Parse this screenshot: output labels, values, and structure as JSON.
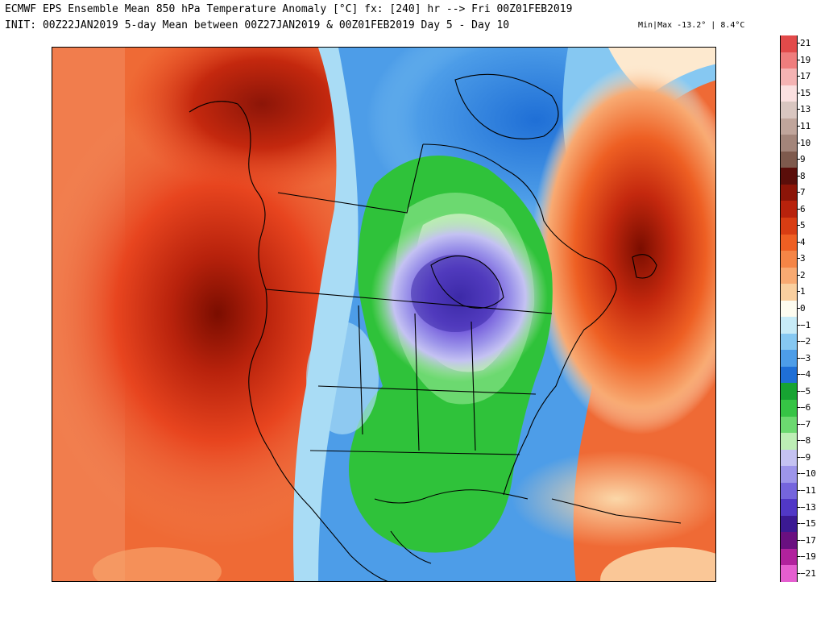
{
  "header": {
    "line1": "ECMWF EPS Ensemble Mean 850 hPa Temperature Anomaly [°C] fx: [240] hr --> Fri 00Z01FEB2019",
    "line2": "INIT: 00Z22JAN2019 5-day Mean between 00Z27JAN2019 & 00Z01FEB2019   Day 5 - Day 10",
    "minmax": "Min|Max -13.2° | 8.4°C"
  },
  "colors": {
    "warm_dark": "#7a0d00",
    "warm": "#e8451f",
    "warm_light": "#f4a079",
    "neutral": "#ffffff",
    "cool_light": "#a9dcf5",
    "cool_blue": "#2f78e0",
    "green": "#2fc23a",
    "light_green": "#aee8a4",
    "purple": "#6a4fd8",
    "deep_purple": "#3d2aa8"
  },
  "legend": {
    "labels": [
      "21",
      "19",
      "17",
      "15",
      "13",
      "11",
      "10",
      "9",
      "8",
      "7",
      "6",
      "5",
      "4",
      "3",
      "2",
      "1",
      "0",
      "−1",
      "−2",
      "−3",
      "−4",
      "−5",
      "−6",
      "−7",
      "−8",
      "−9",
      "−10",
      "−11",
      "−13",
      "−15",
      "−17",
      "−19",
      "−21"
    ],
    "colors": [
      "#e24a4a",
      "#ef7d7d",
      "#f5b3b3",
      "#fbe0e0",
      "#d9c6c0",
      "#c0a59b",
      "#a3857a",
      "#7e5a4d",
      "#5a0e0a",
      "#8c1508",
      "#b8220c",
      "#d83d13",
      "#ee5f23",
      "#f58546",
      "#f8aa72",
      "#f9cf9f",
      "#fdfcf0",
      "#c7ebf7",
      "#86c8f2",
      "#4d9de8",
      "#1f6fd6",
      "#17a332",
      "#36c445",
      "#6cd970",
      "#bdeeb5",
      "#c4c2f2",
      "#9d95ea",
      "#7565dd",
      "#5138c6",
      "#3b1a93",
      "#6a1080",
      "#b1229d",
      "#e55ed0"
    ]
  }
}
